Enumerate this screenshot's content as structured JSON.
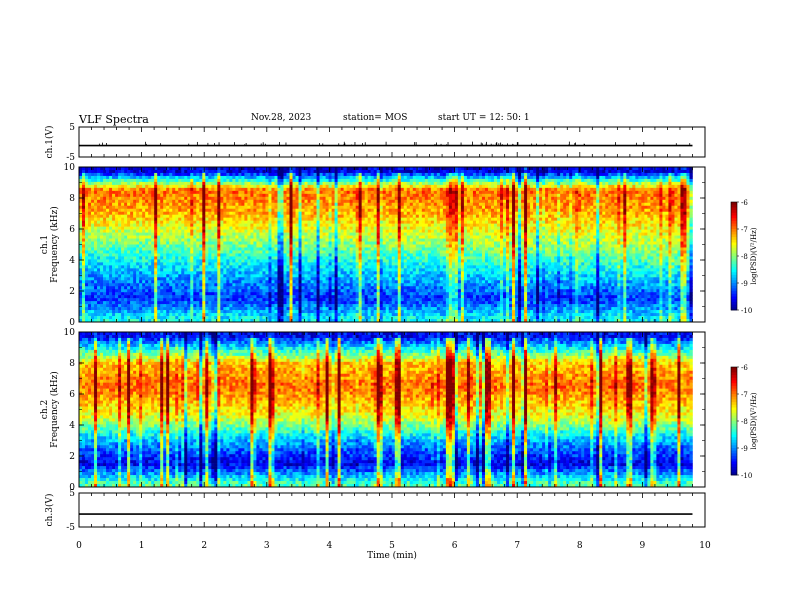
{
  "header": {
    "title": "VLF Spectra",
    "date": "Nov.28, 2023",
    "station": "station= MOS",
    "start": "start  UT =   12: 50: 1"
  },
  "chart_data": [
    {
      "type": "line",
      "ylabel": "ch.1(V)",
      "ylim": [
        -5,
        5
      ],
      "yticks": [
        "5",
        "-5"
      ],
      "x": [
        0,
        10
      ],
      "values": [
        -1.2,
        -1.2
      ],
      "grid": false
    },
    {
      "type": "heatmap",
      "ylabel": "ch.1\nFrequency (kHz)",
      "ylim": [
        0,
        10
      ],
      "yticks": [
        "0",
        "2",
        "4",
        "6",
        "8",
        "10"
      ],
      "xlim": [
        0,
        10
      ],
      "data_end_min": 9.8,
      "colorbar": {
        "label": "log(PSD)(V²/Hz)",
        "ticks": [
          "-6",
          "-7",
          "-8",
          "-9",
          "-10"
        ],
        "range": [
          -10,
          -6
        ]
      },
      "profile": [
        {
          "freq_khz": 0.2,
          "log_psd_start": -8.5,
          "log_psd_end": -8.5
        },
        {
          "freq_khz": 1.5,
          "log_psd_start": -9.3,
          "log_psd_end": -9.3
        },
        {
          "freq_khz": 3.0,
          "log_psd_start": -8.9,
          "log_psd_end": -8.6
        },
        {
          "freq_khz": 5.0,
          "log_psd_start": -8.1,
          "log_psd_end": -7.8
        },
        {
          "freq_khz": 7.0,
          "log_psd_start": -7.2,
          "log_psd_end": -7.2
        },
        {
          "freq_khz": 8.5,
          "log_psd_start": -6.9,
          "log_psd_end": -6.9
        },
        {
          "freq_khz": 9.7,
          "log_psd_start": -9.6,
          "log_psd_end": -9.6
        }
      ]
    },
    {
      "type": "heatmap",
      "ylabel": "ch.2\nFrequency (kHz)",
      "ylim": [
        0,
        10
      ],
      "yticks": [
        "0",
        "2",
        "4",
        "6",
        "8",
        "10"
      ],
      "xlim": [
        0,
        10
      ],
      "data_end_min": 9.8,
      "colorbar": {
        "label": "log(PSD)(V²/Hz)",
        "ticks": [
          "-6",
          "-7",
          "-8",
          "-9",
          "-10"
        ],
        "range": [
          -10,
          -6
        ]
      },
      "profile": [
        {
          "freq_khz": 0.2,
          "log_psd_start": -8.2,
          "log_psd_end": -8.2
        },
        {
          "freq_khz": 1.5,
          "log_psd_start": -9.6,
          "log_psd_end": -9.6
        },
        {
          "freq_khz": 3.0,
          "log_psd_start": -8.8,
          "log_psd_end": -8.8
        },
        {
          "freq_khz": 4.5,
          "log_psd_start": -7.6,
          "log_psd_end": -7.6
        },
        {
          "freq_khz": 6.5,
          "log_psd_start": -6.9,
          "log_psd_end": -6.9
        },
        {
          "freq_khz": 8.0,
          "log_psd_start": -7.3,
          "log_psd_end": -7.3
        },
        {
          "freq_khz": 9.7,
          "log_psd_start": -9.5,
          "log_psd_end": -9.5
        }
      ]
    },
    {
      "type": "line",
      "ylabel": "ch.3(V)",
      "ylim": [
        -5,
        5
      ],
      "yticks": [
        "5",
        "-5"
      ],
      "x": [
        0,
        10
      ],
      "values": [
        -1.2,
        -1.2
      ],
      "grid": false
    }
  ],
  "xaxis": {
    "label": "Time  (min)",
    "ticks": [
      "0",
      "1",
      "2",
      "3",
      "4",
      "5",
      "6",
      "7",
      "8",
      "9",
      "10"
    ]
  }
}
